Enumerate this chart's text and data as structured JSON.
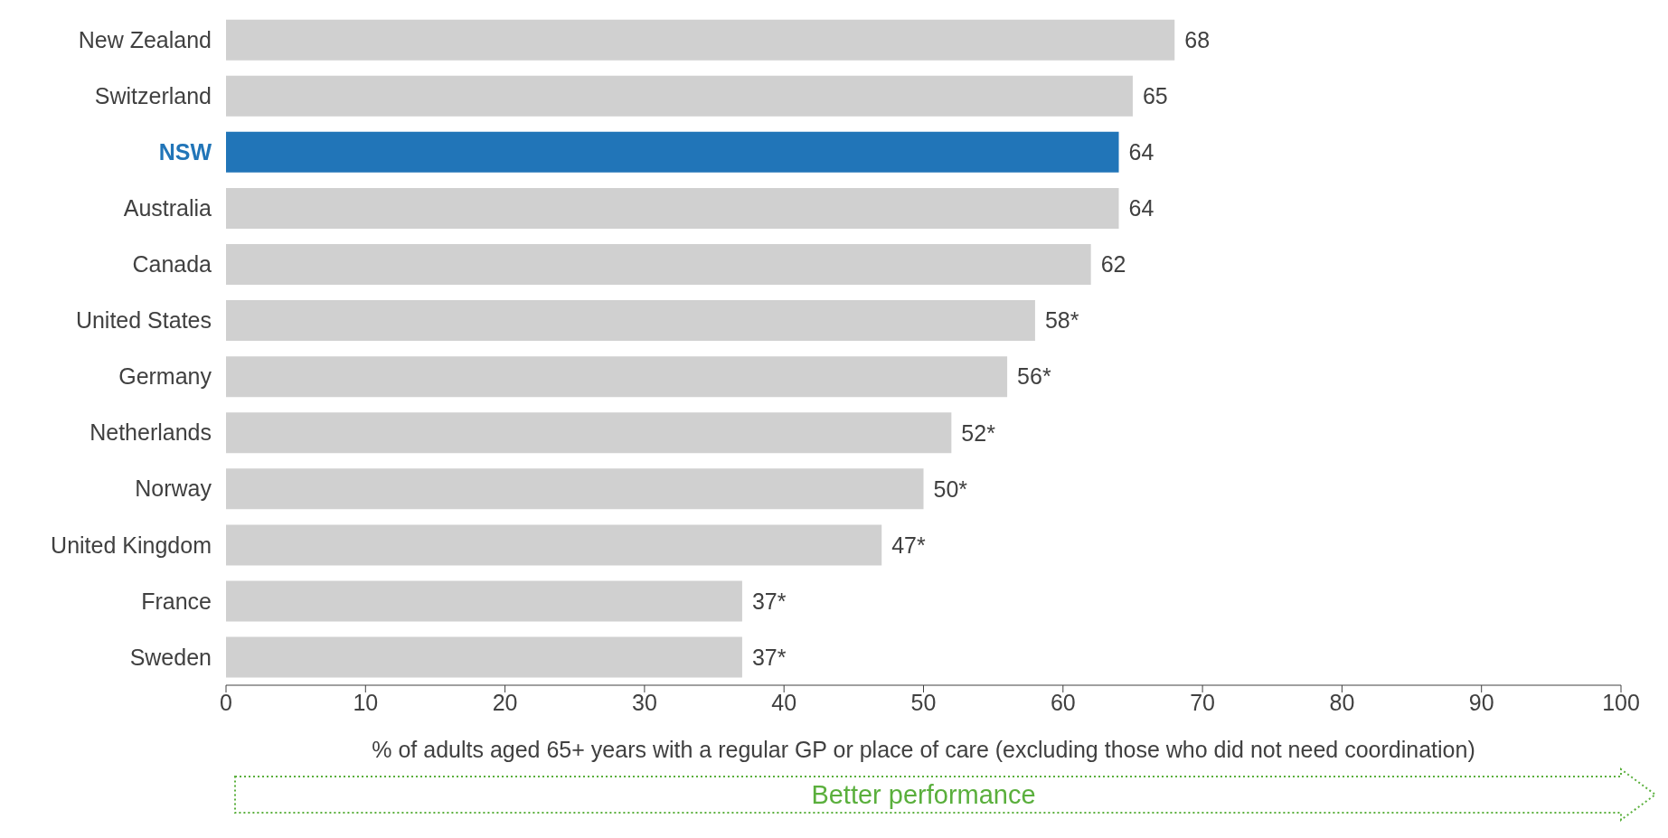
{
  "chart_data": {
    "type": "bar",
    "orientation": "horizontal",
    "categories": [
      "New Zealand",
      "Switzerland",
      "NSW",
      "Australia",
      "Canada",
      "United States",
      "Germany",
      "Netherlands",
      "Norway",
      "United Kingdom",
      "France",
      "Sweden"
    ],
    "values": [
      68,
      65,
      64,
      64,
      62,
      58,
      56,
      52,
      50,
      47,
      37,
      37
    ],
    "value_labels": [
      "68",
      "65",
      "64",
      "64",
      "62",
      "58*",
      "56*",
      "52*",
      "50*",
      "47*",
      "37*",
      "37*"
    ],
    "colors": [
      "#d0d0d0",
      "#d0d0d0",
      "#2175b8",
      "#d0d0d0",
      "#d0d0d0",
      "#d0d0d0",
      "#d0d0d0",
      "#d0d0d0",
      "#d0d0d0",
      "#d0d0d0",
      "#d0d0d0",
      "#d0d0d0"
    ],
    "xlim": [
      0,
      100
    ],
    "xticks": [
      0,
      10,
      20,
      30,
      40,
      50,
      60,
      70,
      80,
      90,
      100
    ],
    "xlabel": "% of adults aged 65+ years with a regular GP or place of care (excluding those who did not need coordination)",
    "annotations": [
      "Better performance"
    ],
    "grid": false,
    "legend": false
  }
}
